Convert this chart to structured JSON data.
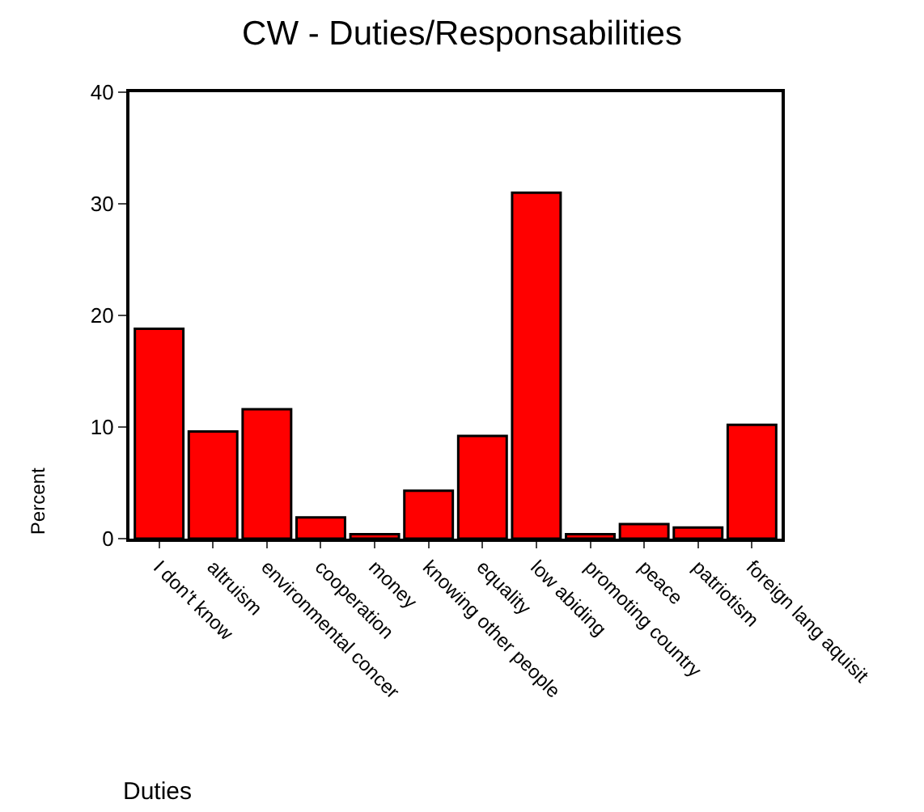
{
  "chart_data": {
    "type": "bar",
    "title": "CW - Duties/Responsabilities",
    "xlabel": "Duties",
    "ylabel": "Percent",
    "categories": [
      "I don't know",
      "altruism",
      "environmental concer",
      "cooperation",
      "money",
      "knowing other people",
      "equality",
      "low abiding",
      "promoting country",
      "peace",
      "patriotism",
      "foreign lang aquisit"
    ],
    "values": [
      18.8,
      9.6,
      11.6,
      1.9,
      0.4,
      4.3,
      9.2,
      31.0,
      0.4,
      1.3,
      1.0,
      10.2
    ],
    "color": "#ff0000",
    "ylim": [
      0,
      40
    ],
    "yticks": [
      0,
      10,
      20,
      30,
      40
    ]
  }
}
